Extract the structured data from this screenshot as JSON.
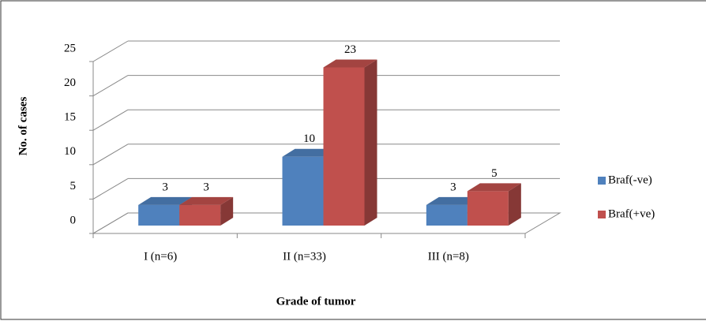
{
  "chart_data": {
    "type": "bar3d",
    "y_label": "No. of cases",
    "x_label": "Grade of tumor",
    "categories": [
      "I (n=6)",
      "II (n=33)",
      "III (n=8)"
    ],
    "series": [
      {
        "name": "Braf(-ve)",
        "color": "#4f81bd",
        "values": [
          3,
          10,
          3
        ]
      },
      {
        "name": "Braf(+ve)",
        "color": "#c0504d",
        "values": [
          3,
          23,
          5
        ]
      }
    ],
    "ylim": [
      0,
      25
    ],
    "yticks": [
      0,
      5,
      10,
      15,
      20,
      25
    ],
    "grid": true,
    "legend": "right"
  }
}
